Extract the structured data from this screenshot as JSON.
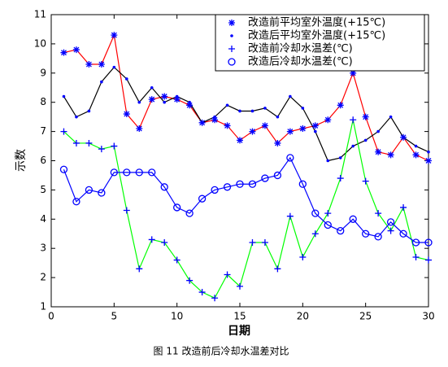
{
  "chart_data": {
    "type": "line",
    "xlabel": "日期",
    "ylabel": "示数",
    "caption": "图 11 改造前后冷却水温差对比",
    "x": [
      1,
      2,
      3,
      4,
      5,
      6,
      7,
      8,
      9,
      10,
      11,
      12,
      13,
      14,
      15,
      16,
      17,
      18,
      19,
      20,
      21,
      22,
      23,
      24,
      25,
      26,
      27,
      28,
      29,
      30
    ],
    "series": [
      {
        "name": "改造前平均室外温度(+15℃)",
        "color": "#ff0000",
        "marker_color": "#0000ff",
        "marker": "star",
        "values": [
          9.7,
          9.8,
          9.3,
          9.3,
          10.3,
          7.6,
          7.1,
          8.1,
          8.2,
          8.1,
          7.9,
          7.3,
          7.4,
          7.2,
          6.7,
          7.0,
          7.2,
          6.6,
          7.0,
          7.1,
          7.2,
          7.4,
          7.9,
          9.0,
          7.5,
          6.3,
          6.2,
          6.8,
          6.2,
          6.0
        ]
      },
      {
        "name": "改造后平均室外温度(+15℃)",
        "color": "#000000",
        "marker_color": "#0000ff",
        "marker": "dot",
        "values": [
          8.2,
          7.5,
          7.7,
          8.7,
          9.2,
          8.8,
          8.0,
          8.5,
          8.0,
          8.2,
          8.0,
          7.3,
          7.5,
          7.9,
          7.7,
          7.7,
          7.8,
          7.5,
          8.2,
          7.8,
          7.0,
          6.0,
          6.1,
          6.5,
          6.7,
          7.0,
          7.5,
          6.8,
          6.5,
          6.3
        ]
      },
      {
        "name": "改造前冷却水温差(℃)",
        "color": "#00ff00",
        "marker_color": "#0000ff",
        "marker": "plus",
        "values": [
          7.0,
          6.6,
          6.6,
          6.4,
          6.5,
          4.3,
          2.3,
          3.3,
          3.2,
          2.6,
          1.9,
          1.5,
          1.3,
          2.1,
          1.7,
          3.2,
          3.2,
          2.3,
          4.1,
          2.7,
          3.5,
          4.2,
          5.4,
          7.4,
          5.3,
          4.2,
          3.6,
          4.4,
          2.7,
          2.6
        ]
      },
      {
        "name": "改造后冷却水温差(℃)",
        "color": "#0000ff",
        "marker_color": "#0000ff",
        "marker": "circle",
        "values": [
          5.7,
          4.6,
          5.0,
          4.9,
          5.6,
          5.6,
          5.6,
          5.6,
          5.1,
          4.4,
          4.2,
          4.7,
          5.0,
          5.1,
          5.2,
          5.2,
          5.4,
          5.5,
          6.1,
          5.2,
          4.2,
          3.8,
          3.6,
          4.0,
          3.5,
          3.4,
          3.9,
          3.5,
          3.2,
          3.2
        ]
      }
    ],
    "xlim": [
      0,
      30
    ],
    "xticks": [
      0,
      5,
      10,
      15,
      20,
      25,
      30
    ],
    "ylim": [
      1,
      11
    ],
    "yticks": [
      1,
      2,
      3,
      4,
      5,
      6,
      7,
      8,
      9,
      10,
      11
    ],
    "legend": "upper right"
  }
}
